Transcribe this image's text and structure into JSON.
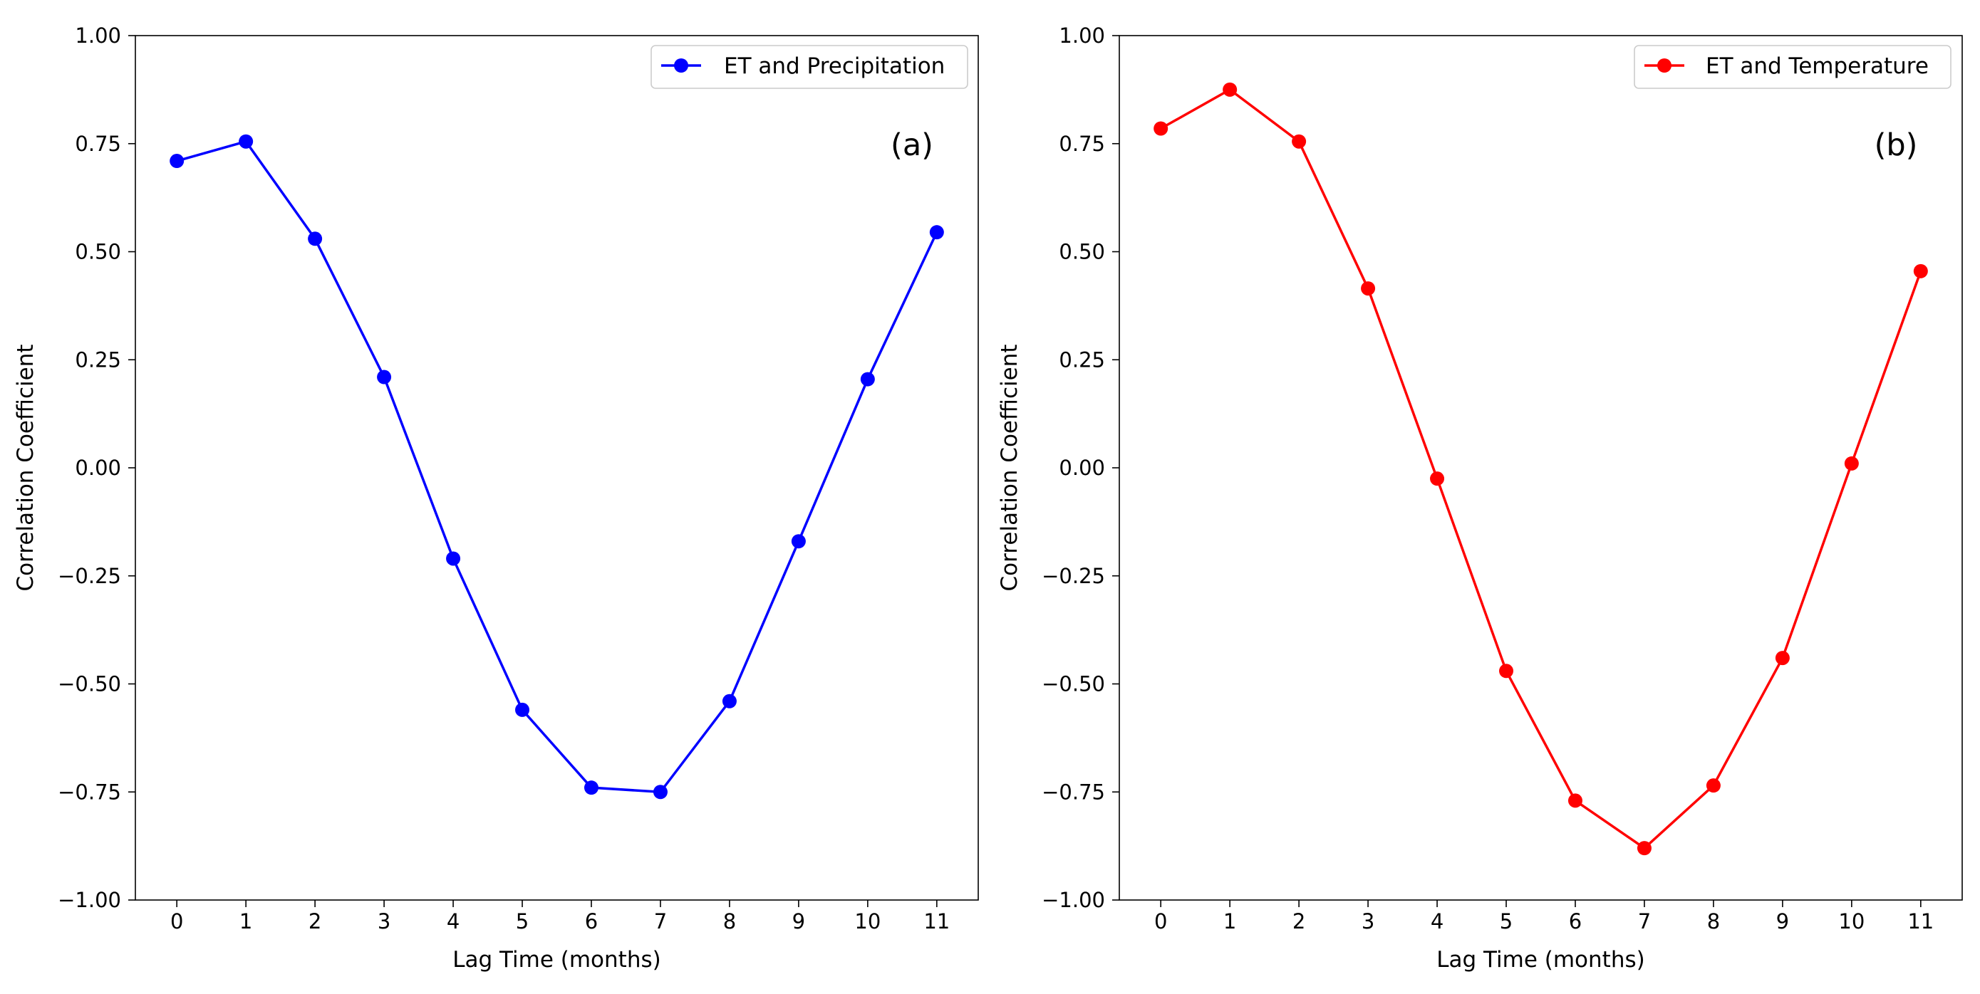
{
  "chart_data": [
    {
      "type": "line",
      "panel_label": "(a)",
      "xlabel": "Lag Time (months)",
      "ylabel": "Correlation Coefficient",
      "x": [
        0,
        1,
        2,
        3,
        4,
        5,
        6,
        7,
        8,
        9,
        10,
        11
      ],
      "xticks": [
        "0",
        "1",
        "2",
        "3",
        "4",
        "5",
        "6",
        "7",
        "8",
        "9",
        "10",
        "11"
      ],
      "xlim": [
        -0.6,
        11.6
      ],
      "ylim": [
        -1.0,
        1.0
      ],
      "yticks": [
        "1.00",
        "0.75",
        "0.50",
        "0.25",
        "0.00",
        "−0.25",
        "−0.50",
        "−0.75",
        "−1.00"
      ],
      "ytick_values": [
        1.0,
        0.75,
        0.5,
        0.25,
        0.0,
        -0.25,
        -0.5,
        -0.75,
        -1.0
      ],
      "legend_position": "top-right",
      "series": [
        {
          "name": "ET and Precipitation",
          "color": "#0000ff",
          "values": [
            0.71,
            0.755,
            0.53,
            0.21,
            -0.21,
            -0.56,
            -0.74,
            -0.75,
            -0.54,
            -0.17,
            0.205,
            0.545
          ]
        }
      ]
    },
    {
      "type": "line",
      "panel_label": "(b)",
      "xlabel": "Lag Time (months)",
      "ylabel": "Correlation Coefficient",
      "x": [
        0,
        1,
        2,
        3,
        4,
        5,
        6,
        7,
        8,
        9,
        10,
        11
      ],
      "xticks": [
        "0",
        "1",
        "2",
        "3",
        "4",
        "5",
        "6",
        "7",
        "8",
        "9",
        "10",
        "11"
      ],
      "xlim": [
        -0.6,
        11.6
      ],
      "ylim": [
        -1.0,
        1.0
      ],
      "yticks": [
        "1.00",
        "0.75",
        "0.50",
        "0.25",
        "0.00",
        "−0.25",
        "−0.50",
        "−0.75",
        "−1.00"
      ],
      "ytick_values": [
        1.0,
        0.75,
        0.5,
        0.25,
        0.0,
        -0.25,
        -0.5,
        -0.75,
        -1.0
      ],
      "legend_position": "top-right",
      "series": [
        {
          "name": "ET and Temperature",
          "color": "#ff0000",
          "values": [
            0.785,
            0.875,
            0.755,
            0.415,
            -0.025,
            -0.47,
            -0.77,
            -0.88,
            -0.735,
            -0.44,
            0.01,
            0.455
          ]
        }
      ]
    }
  ]
}
